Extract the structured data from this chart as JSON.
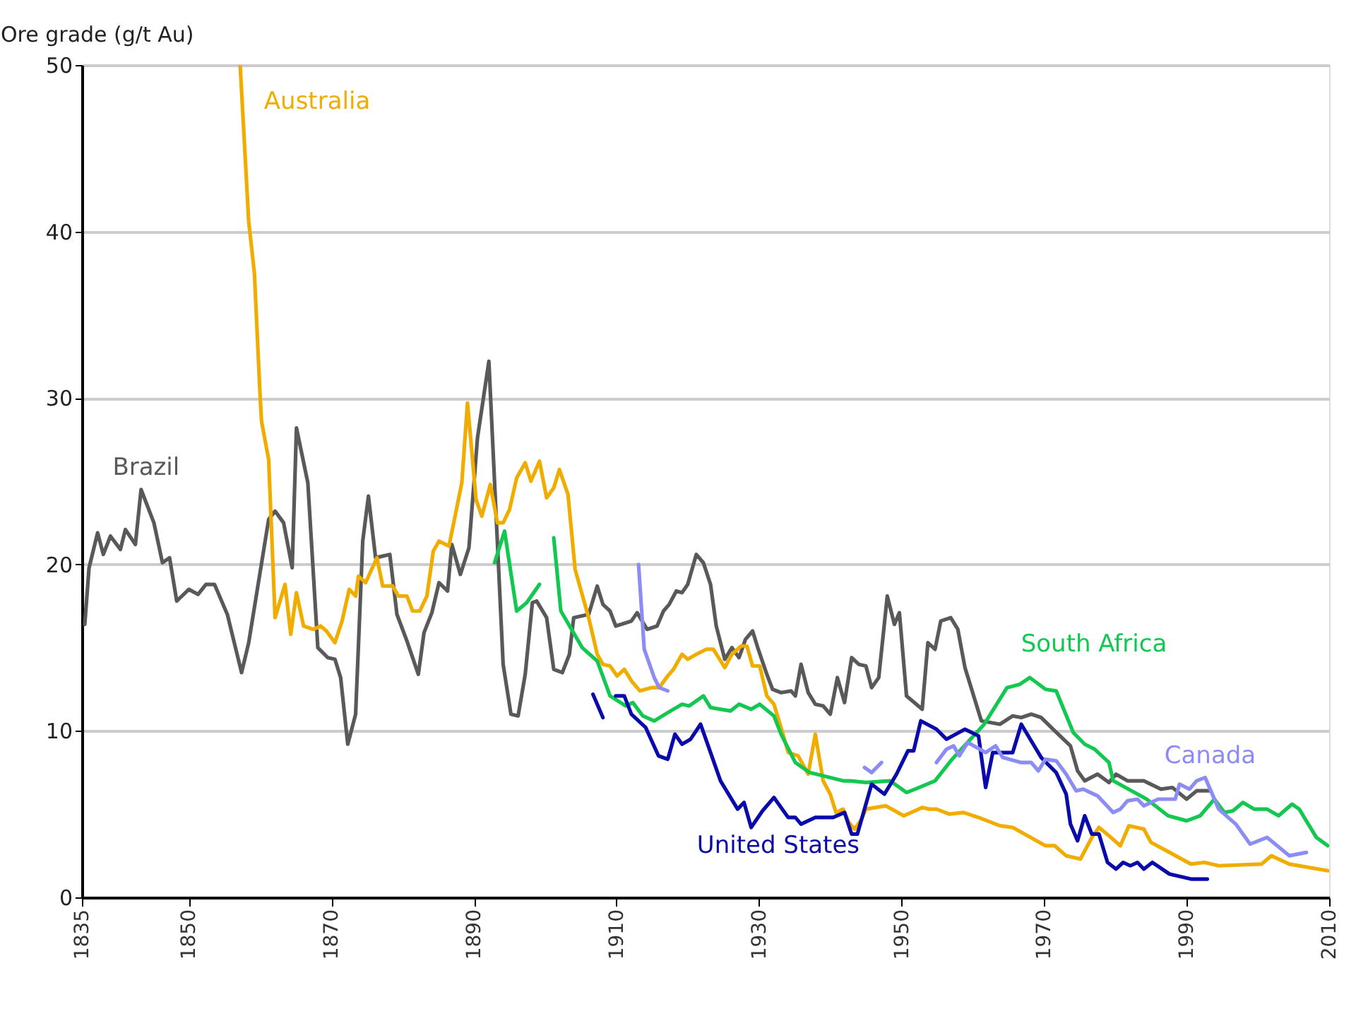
{
  "chart_data": {
    "type": "line",
    "ylabel": "Ore grade (g/t Au)",
    "xlim": [
      1835,
      2010
    ],
    "xticks": [
      1835,
      1850,
      1870,
      1890,
      1910,
      1930,
      1950,
      1970,
      1990,
      2010
    ],
    "ylim": [
      0,
      50
    ],
    "yticks": [
      0,
      10,
      20,
      30,
      40,
      50
    ],
    "grid": "y",
    "legend": false,
    "line_style": "solid",
    "marker": "none",
    "series": [
      {
        "name": "Brazil",
        "color": "#595959",
        "x": [
          1835.4,
          1836,
          1837.2,
          1838,
          1839,
          1840.4,
          1841.1,
          1842.5,
          1843.3,
          1845.1,
          1846.3,
          1847.3,
          1848.3,
          1850,
          1851.3,
          1852.4,
          1853.6,
          1855.4,
          1857.4,
          1858.4,
          1861.2,
          1862.1,
          1863.3,
          1864.5,
          1865.1,
          1866.7,
          1868.1,
          1869.5,
          1870.5,
          1871.3,
          1872.3,
          1873.4,
          1874.4,
          1875.2,
          1876.2,
          1878.2,
          1879.2,
          1880.6,
          1882.2,
          1883,
          1884.1,
          1885.1,
          1886.3,
          1886.9,
          1888.1,
          1889.3,
          1890.5,
          1892.1,
          1894.1,
          1895.2,
          1896.2,
          1897.2,
          1898.2,
          1898.8,
          1900.2,
          1901.2,
          1902.4,
          1903.4,
          1904,
          1906.1,
          1907.3,
          1908.1,
          1909.1,
          1909.9,
          1912.1,
          1912.9,
          1914.3,
          1915.7,
          1916.6,
          1917.4,
          1918.4,
          1919.2,
          1920,
          1921.2,
          1922.2,
          1923.2,
          1924,
          1925.2,
          1926.2,
          1927.2,
          1928.1,
          1929.1,
          1929.9,
          1931.1,
          1931.9,
          1933.1,
          1934.5,
          1935.1,
          1935.9,
          1936.9,
          1937.9,
          1939,
          1940,
          1941,
          1942,
          1943,
          1944,
          1945,
          1945.8,
          1946.8,
          1948,
          1949,
          1949.7,
          1950.7,
          1952.9,
          1953.7,
          1954.7,
          1955.5,
          1956.9,
          1957.9,
          1958.9,
          1961.2,
          1963.8,
          1965.6,
          1966.8,
          1968.2,
          1969.6,
          1971.5,
          1973.7,
          1974.7,
          1975.7,
          1977.5,
          1979.1,
          1980.1,
          1981.7,
          1984,
          1986.4,
          1988,
          1990,
          1991.4,
          1993.3
        ],
        "values": [
          16.4,
          19.8,
          21.9,
          20.6,
          21.7,
          20.9,
          22.1,
          21.2,
          24.5,
          22.5,
          20.1,
          20.4,
          17.8,
          18.5,
          18.2,
          18.8,
          18.8,
          17,
          13.5,
          15.3,
          22.7,
          23.2,
          22.5,
          19.8,
          28.2,
          24.9,
          15,
          14.4,
          14.3,
          13.2,
          9.2,
          11,
          21.4,
          24.1,
          20.4,
          20.6,
          17,
          15.4,
          13.4,
          15.9,
          17.1,
          18.9,
          18.4,
          21.2,
          19.4,
          21,
          27.6,
          32.2,
          14,
          11,
          10.9,
          13.4,
          17.7,
          17.8,
          16.8,
          13.7,
          13.5,
          14.6,
          16.8,
          17,
          18.7,
          17.6,
          17.2,
          16.3,
          16.6,
          17.1,
          16.1,
          16.3,
          17.2,
          17.6,
          18.4,
          18.3,
          18.8,
          20.6,
          20.1,
          18.8,
          16.3,
          14.3,
          15,
          14.4,
          15.5,
          16,
          14.9,
          13.4,
          12.5,
          12.3,
          12.4,
          12.1,
          14,
          12.3,
          11.6,
          11.5,
          11,
          13.2,
          11.7,
          14.4,
          14,
          13.9,
          12.6,
          13.2,
          18.1,
          16.4,
          17.1,
          12.1,
          11.3,
          15.3,
          14.9,
          16.6,
          16.8,
          16.1,
          13.8,
          10.6,
          10.4,
          10.9,
          10.8,
          11,
          10.8,
          10,
          9.1,
          7.6,
          7,
          7.4,
          6.9,
          7.4,
          7,
          7,
          6.5,
          6.6,
          5.9,
          6.4,
          6.4
        ]
      },
      {
        "name": "Australia",
        "color": "#f0ad00",
        "x": [
          1857.2,
          1858.4,
          1859.2,
          1860,
          1860.2,
          1861.2,
          1862.1,
          1863.5,
          1864.3,
          1865.1,
          1866.1,
          1867.5,
          1868.5,
          1869.3,
          1870.5,
          1871.5,
          1872.5,
          1873.4,
          1873.8,
          1874.8,
          1876.4,
          1877.2,
          1878.6,
          1879.4,
          1880.6,
          1881.4,
          1882.4,
          1883.4,
          1884.3,
          1885.1,
          1886.5,
          1887.5,
          1888.3,
          1889.1,
          1890.3,
          1891.1,
          1892.3,
          1893.3,
          1894.1,
          1895,
          1896,
          1897.2,
          1898,
          1899.2,
          1900.2,
          1901.2,
          1902,
          1903.2,
          1904.2,
          1906.1,
          1907.3,
          1908.1,
          1909.1,
          1910.1,
          1911.1,
          1912.1,
          1913.3,
          1914.9,
          1916,
          1917.2,
          1918,
          1919.2,
          1920,
          1921.2,
          1922.6,
          1923.6,
          1925.2,
          1926.2,
          1927.5,
          1928.3,
          1929.1,
          1930.1,
          1931.1,
          1932.1,
          1933.3,
          1934.1,
          1935.5,
          1936.9,
          1937.9,
          1939,
          1940,
          1940.8,
          1941.8,
          1942.6,
          1943.4,
          1944.4,
          1945,
          1947.8,
          1950.3,
          1952.9,
          1953.9,
          1954.9,
          1956.7,
          1958.7,
          1960.8,
          1963.8,
          1965.6,
          1970.2,
          1971.5,
          1973.1,
          1975.1,
          1976.7,
          1977.7,
          1979.1,
          1980.7,
          1981.9,
          1984,
          1985,
          1987.6,
          1990.6,
          1992.5,
          1994.5,
          2000.5,
          2001.9,
          2004.4,
          2009.8
        ],
        "values": [
          50,
          40.6,
          37.5,
          30.1,
          28.6,
          26.3,
          16.8,
          18.8,
          15.8,
          18.3,
          16.3,
          16.1,
          16.3,
          16,
          15.3,
          16.6,
          18.5,
          18.1,
          19.3,
          18.9,
          20.4,
          18.7,
          18.7,
          18.1,
          18.1,
          17.2,
          17.2,
          18.1,
          20.8,
          21.4,
          21.1,
          23.2,
          24.9,
          29.7,
          23.9,
          22.9,
          24.8,
          22.5,
          22.5,
          23.3,
          25.2,
          26.1,
          25,
          26.2,
          24,
          24.6,
          25.7,
          24.2,
          19.7,
          16.8,
          14.6,
          14,
          13.9,
          13.3,
          13.7,
          13,
          12.4,
          12.6,
          12.6,
          13.3,
          13.7,
          14.6,
          14.3,
          14.6,
          14.9,
          14.9,
          13.8,
          14.6,
          15.1,
          15.1,
          13.9,
          13.9,
          12.1,
          11.6,
          9.9,
          8.7,
          8.5,
          7.4,
          9.8,
          7,
          6.2,
          5.1,
          5.3,
          4.5,
          4.1,
          4.7,
          5.3,
          5.5,
          4.9,
          5.4,
          5.3,
          5.3,
          5,
          5.1,
          4.8,
          4.3,
          4.2,
          3.1,
          3.1,
          2.5,
          2.3,
          3.6,
          4.2,
          3.7,
          3.1,
          4.3,
          4.1,
          3.3,
          2.7,
          2,
          2.1,
          1.9,
          2,
          2.5,
          2,
          1.6
        ]
      },
      {
        "name": "South Africa",
        "color": "#12c850",
        "x": [
          1892.9,
          1894.3,
          1896,
          1897.4,
          1899.2,
          1900,
          1901.2,
          1902.2,
          1905.2,
          1907.3,
          1909.1,
          1911.3,
          1912.3,
          1913.7,
          1915.3,
          1917.6,
          1919.2,
          1920.2,
          1922.2,
          1923.2,
          1926,
          1927.2,
          1928.9,
          1930.1,
          1932.1,
          1933.1,
          1935.1,
          1937.1,
          1941.8,
          1942.8,
          1945,
          1948.4,
          1950.7,
          1951.9,
          1954.7,
          1956.9,
          1961.6,
          1964.8,
          1966.6,
          1968,
          1970.2,
          1971.7,
          1974.1,
          1975.7,
          1977.1,
          1979.1,
          1979.7,
          1984.4,
          1987.4,
          1990,
          1991.9,
          1993.9,
          1995.3,
          1996.5,
          1997.9,
          1999.5,
          2001.3,
          2002.9,
          2004.8,
          2005.8,
          2008.2,
          2009.8
        ],
        "values": [
          20.1,
          22,
          17.2,
          17.7,
          18.8,
          null,
          21.6,
          17.2,
          15,
          14.2,
          12.1,
          11.5,
          11.7,
          10.9,
          10.6,
          11.2,
          11.6,
          11.5,
          12.1,
          11.4,
          11.2,
          11.6,
          11.3,
          11.6,
          10.9,
          9.8,
          8.1,
          7.5,
          7,
          7,
          6.9,
          7,
          6.3,
          6.5,
          7,
          8.2,
          10.4,
          12.6,
          12.8,
          13.2,
          12.5,
          12.4,
          9.9,
          9.2,
          8.9,
          8.1,
          7,
          5.9,
          4.9,
          4.6,
          4.9,
          5.9,
          5.1,
          5.2,
          5.7,
          5.3,
          5.3,
          4.9,
          5.6,
          5.3,
          3.6,
          3.1
        ]
      },
      {
        "name": "United States",
        "color": "#0a0aaa",
        "x": [
          1906.7,
          1908.1,
          1909,
          1909.9,
          1911.1,
          1912.1,
          1914.1,
          1915.9,
          1917.2,
          1918.2,
          1919.2,
          1920.4,
          1921.8,
          1924.6,
          1927,
          1927.9,
          1928.9,
          1930.5,
          1932.1,
          1934.1,
          1935.1,
          1935.9,
          1937.9,
          1940.4,
          1942,
          1943,
          1943.8,
          1945.8,
          1947.6,
          1949.3,
          1950.9,
          1951.7,
          1952.7,
          1954.9,
          1956.3,
          1958.9,
          1960.8,
          1961.8,
          1962.8,
          1965.6,
          1966.8,
          1969.6,
          1971.7,
          1973.1,
          1973.7,
          1974.7,
          1975.7,
          1976.7,
          1977.7,
          1978.9,
          1980.1,
          1981.1,
          1982.1,
          1983.1,
          1984,
          1985.2,
          1987.6,
          1990.6,
          1992.9
        ],
        "values": [
          12.2,
          10.8,
          null,
          12.1,
          12.1,
          11,
          10.2,
          8.5,
          8.3,
          9.8,
          9.2,
          9.5,
          10.4,
          7,
          5.3,
          5.7,
          4.2,
          5.2,
          6,
          4.8,
          4.8,
          4.4,
          4.8,
          4.8,
          5.1,
          3.8,
          3.8,
          6.8,
          6.2,
          7.4,
          8.8,
          8.8,
          10.6,
          10.1,
          9.5,
          10.1,
          9.7,
          6.6,
          8.7,
          8.7,
          10.4,
          8.4,
          7.5,
          6.2,
          4.4,
          3.4,
          4.9,
          3.8,
          3.8,
          2.1,
          1.7,
          2.1,
          1.9,
          2.1,
          1.7,
          2.1,
          1.4,
          1.1,
          1.1
        ]
      },
      {
        "name": "Canada",
        "color": "#8c8cf5",
        "x": [
          1913.1,
          1913.9,
          1915.3,
          1916,
          1917.2,
          1930,
          1944.8,
          1945.8,
          1947.2,
          1950,
          1954.9,
          1956.3,
          1957.3,
          1958.1,
          1959.3,
          1961.8,
          1963.2,
          1964.2,
          1966.8,
          1968.2,
          1969.2,
          1970.2,
          1971.7,
          1973.1,
          1974.5,
          1975.5,
          1977.5,
          1979.7,
          1980.7,
          1981.7,
          1983.1,
          1984,
          1986,
          1988.4,
          1989,
          1990.4,
          1991.4,
          1992.6,
          1994.5,
          1996.9,
          1998.9,
          2001.3,
          2004.4,
          2006.8
        ],
        "values": [
          20,
          14.9,
          13.2,
          12.6,
          12.4,
          null,
          7.8,
          7.5,
          8.1,
          null,
          8.1,
          8.9,
          9.1,
          8.5,
          9.3,
          8.7,
          9.1,
          8.4,
          8.1,
          8.1,
          7.6,
          8.3,
          8.2,
          7.4,
          6.4,
          6.5,
          6.1,
          5.1,
          5.3,
          5.8,
          5.9,
          5.5,
          5.9,
          5.9,
          6.8,
          6.5,
          7,
          7.2,
          5.3,
          4.4,
          3.2,
          3.6,
          2.5,
          2.7
        ]
      }
    ]
  }
}
